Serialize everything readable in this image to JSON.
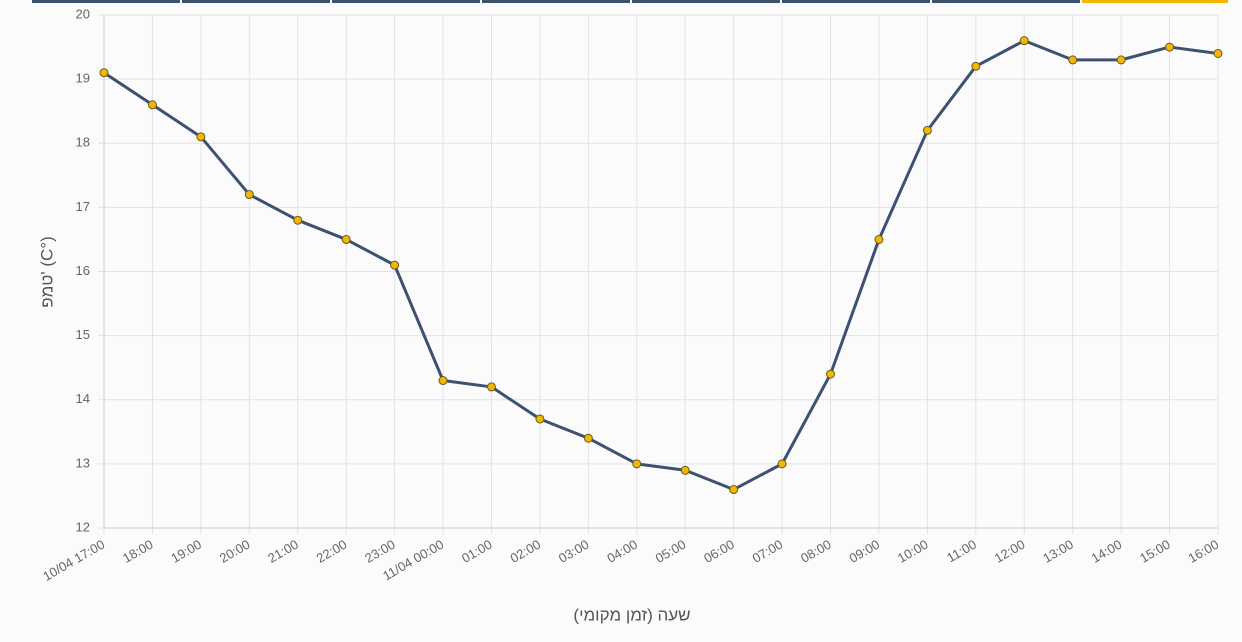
{
  "chart_data": {
    "type": "line",
    "x_label": "שעה (זמן מקומי)",
    "y_label": "טמפ' (C°)",
    "categories": [
      "10/04 17:00",
      "18:00",
      "19:00",
      "20:00",
      "21:00",
      "22:00",
      "23:00",
      "11/04 00:00",
      "01:00",
      "02:00",
      "03:00",
      "04:00",
      "05:00",
      "06:00",
      "07:00",
      "08:00",
      "09:00",
      "10:00",
      "11:00",
      "12:00",
      "13:00",
      "14:00",
      "15:00",
      "16:00"
    ],
    "values": [
      19.1,
      18.6,
      18.1,
      17.2,
      16.8,
      16.5,
      16.1,
      14.3,
      14.2,
      13.7,
      13.4,
      13.0,
      12.9,
      12.6,
      13.0,
      14.4,
      16.5,
      18.2,
      19.2,
      19.6,
      19.3,
      19.3,
      19.5,
      19.4
    ],
    "color": "#3d5170",
    "marker_color": "#f2b705",
    "ylim": [
      12,
      20
    ],
    "yticks": [
      12,
      13,
      14,
      15,
      16,
      17,
      18,
      19,
      20
    ],
    "grid": true
  }
}
